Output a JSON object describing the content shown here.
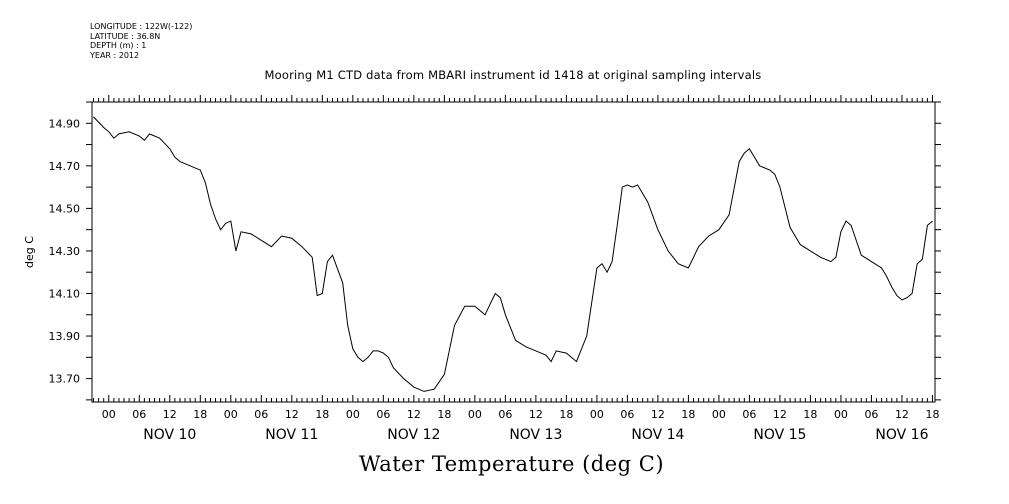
{
  "meta": {
    "longitude": "LONGITUDE : 122W(-122)",
    "latitude": "LATITUDE : 36.8N",
    "depth": "DEPTH (m) : 1",
    "year": "YEAR : 2012"
  },
  "chart_data": {
    "type": "line",
    "title": "Mooring M1 CTD data from MBARI instrument id 1418 at original sampling intervals",
    "xlabel": "Water Temperature (deg C)",
    "ylabel": "deg C",
    "x_unit": "hours since NOV 10 00:00",
    "xlim": [
      -3.3,
      162.5
    ],
    "ylim": [
      13.59,
      15.0
    ],
    "y_ticks": [
      "13.70",
      "13.90",
      "14.10",
      "14.30",
      "14.50",
      "14.70",
      "14.90"
    ],
    "x_hour_ticks": [
      "00",
      "06",
      "12",
      "18",
      "00",
      "06",
      "12",
      "18",
      "00",
      "06",
      "12",
      "18",
      "00",
      "06",
      "12",
      "18",
      "00",
      "06",
      "12",
      "18",
      "00",
      "06",
      "12",
      "18",
      "00",
      "06",
      "12",
      "18"
    ],
    "day_labels": [
      "NOV 10",
      "NOV 11",
      "NOV 12",
      "NOV 13",
      "NOV 14",
      "NOV 15",
      "NOV 16"
    ],
    "series": [
      {
        "x": [
          -3,
          -1,
          0,
          1,
          2,
          4,
          6,
          7,
          8,
          10,
          12,
          13,
          14,
          16,
          18,
          19,
          20,
          21,
          22,
          23,
          24,
          25,
          26,
          28,
          30,
          32,
          34,
          36,
          38,
          40,
          41,
          42,
          43,
          44,
          46,
          47,
          48,
          49,
          50,
          51,
          52,
          53,
          54,
          55,
          56,
          58,
          60,
          62,
          64,
          66,
          68,
          70,
          72,
          74,
          76,
          77,
          78,
          80,
          82,
          84,
          85,
          86,
          87,
          88,
          90,
          92,
          94,
          96,
          97,
          98,
          99,
          100,
          101,
          102,
          103,
          104,
          106,
          108,
          110,
          112,
          114,
          115,
          116,
          118,
          120,
          122,
          124,
          125,
          126,
          128,
          130,
          131,
          132,
          134,
          136,
          138,
          140,
          142,
          143,
          144,
          145,
          146,
          148,
          150,
          152,
          153,
          154,
          155,
          156,
          157,
          158,
          159,
          160,
          161,
          162
        ],
        "y": [
          14.93,
          14.88,
          14.86,
          14.83,
          14.85,
          14.86,
          14.84,
          14.82,
          14.85,
          14.83,
          14.78,
          14.74,
          14.72,
          14.7,
          14.68,
          14.62,
          14.52,
          14.45,
          14.4,
          14.43,
          14.44,
          14.3,
          14.39,
          14.38,
          14.35,
          14.32,
          14.37,
          14.36,
          14.32,
          14.27,
          14.09,
          14.1,
          14.25,
          14.28,
          14.15,
          13.95,
          13.84,
          13.8,
          13.78,
          13.8,
          13.83,
          13.83,
          13.82,
          13.8,
          13.75,
          13.7,
          13.66,
          13.64,
          13.65,
          13.72,
          13.95,
          14.04,
          14.04,
          14.0,
          14.1,
          14.08,
          14.0,
          13.88,
          13.85,
          13.83,
          13.82,
          13.81,
          13.78,
          13.83,
          13.82,
          13.78,
          13.9,
          14.22,
          14.24,
          14.2,
          14.25,
          14.42,
          14.6,
          14.61,
          14.6,
          14.61,
          14.53,
          14.4,
          14.3,
          14.24,
          14.22,
          14.27,
          14.32,
          14.37,
          14.4,
          14.47,
          14.72,
          14.76,
          14.78,
          14.7,
          14.68,
          14.66,
          14.6,
          14.41,
          14.33,
          14.3,
          14.27,
          14.25,
          14.27,
          14.39,
          14.44,
          14.42,
          14.28,
          14.25,
          14.22,
          14.18,
          14.13,
          14.09,
          14.07,
          14.08,
          14.1,
          14.24,
          14.26,
          14.42,
          14.44
        ]
      }
    ]
  }
}
